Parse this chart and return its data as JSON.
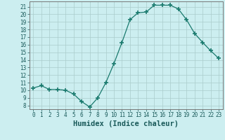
{
  "x": [
    0,
    1,
    2,
    3,
    4,
    5,
    6,
    7,
    8,
    9,
    10,
    11,
    12,
    13,
    14,
    15,
    16,
    17,
    18,
    19,
    20,
    21,
    22,
    23
  ],
  "y": [
    10.3,
    10.6,
    10.1,
    10.1,
    10.0,
    9.5,
    8.5,
    7.8,
    9.0,
    11.0,
    13.5,
    16.3,
    19.3,
    20.2,
    20.3,
    21.2,
    21.2,
    21.2,
    20.7,
    19.3,
    17.5,
    16.3,
    15.2,
    14.2
  ],
  "line_color": "#1a7a6e",
  "marker": "+",
  "marker_size": 4,
  "marker_linewidth": 1.2,
  "bg_color": "#cceef0",
  "grid_major_color": "#aacccc",
  "grid_minor_color": "#bbdddd",
  "xlabel": "Humidex (Indice chaleur)",
  "ylabel_ticks": [
    8,
    9,
    10,
    11,
    12,
    13,
    14,
    15,
    16,
    17,
    18,
    19,
    20,
    21
  ],
  "ylim": [
    7.5,
    21.7
  ],
  "xlim": [
    -0.5,
    23.5
  ],
  "xticks": [
    0,
    1,
    2,
    3,
    4,
    5,
    6,
    7,
    8,
    9,
    10,
    11,
    12,
    13,
    14,
    15,
    16,
    17,
    18,
    19,
    20,
    21,
    22,
    23
  ],
  "tick_fontsize": 5.5,
  "xlabel_fontsize": 7.5
}
